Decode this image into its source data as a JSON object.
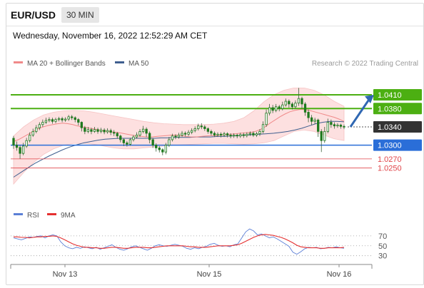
{
  "header": {
    "pair": "EUR/USD",
    "timeframe": "30 MIN",
    "timestamp": "Wednesday, November 16, 2022 12:52:29 AM CET"
  },
  "legend": {
    "ma20_label": "MA 20 + Bollinger Bands",
    "ma50_label": "MA 50",
    "copyright": "Research © 2022 Trading Central"
  },
  "rsi_legend": {
    "rsi_label": "RSI",
    "ma_label": "9MA"
  },
  "colors": {
    "resistance": "#4caf12",
    "support": "#2a6ed8",
    "support_weak": "#e0454a",
    "price_box": "#333333",
    "ma20": "#f08a8a",
    "bollinger_fill": "#fde0e0",
    "ma50": "#3f5f8f",
    "candle": "#1e7a1e",
    "arrow": "#2f67b2",
    "rsi_line": "#5b7fd6",
    "rsi_ma": "#e53030"
  },
  "chart_data": [
    {
      "type": "candlestick",
      "title": "",
      "x_ticks": [
        "Nov 13",
        "Nov 15",
        "Nov 16"
      ],
      "ylim": [
        1.0195,
        1.0435
      ],
      "levels": [
        {
          "value": 1.041,
          "label": "1.0410",
          "kind": "resistance"
        },
        {
          "value": 1.038,
          "label": "1.0380",
          "kind": "resistance"
        },
        {
          "value": 1.034,
          "label": "1.0340",
          "kind": "last_price"
        },
        {
          "value": 1.03,
          "label": "1.0300",
          "kind": "support"
        },
        {
          "value": 1.027,
          "label": "1.0270",
          "kind": "support_minor"
        },
        {
          "value": 1.025,
          "label": "1.0250",
          "kind": "support_minor"
        }
      ],
      "candles": [
        [
          1.0315,
          1.03,
          1.032,
          1.0292
        ],
        [
          1.03,
          1.0295,
          1.0308,
          1.0288
        ],
        [
          1.0295,
          1.0282,
          1.03,
          1.027
        ],
        [
          1.0282,
          1.0298,
          1.0305,
          1.0278
        ],
        [
          1.0298,
          1.031,
          1.0316,
          1.0294
        ],
        [
          1.031,
          1.0322,
          1.0328,
          1.0306
        ],
        [
          1.0322,
          1.033,
          1.0336,
          1.0318
        ],
        [
          1.033,
          1.0338,
          1.0344,
          1.0326
        ],
        [
          1.0338,
          1.0345,
          1.035,
          1.0333
        ],
        [
          1.0345,
          1.035,
          1.0356,
          1.034
        ],
        [
          1.035,
          1.0354,
          1.036,
          1.0346
        ],
        [
          1.0354,
          1.0356,
          1.0361,
          1.035
        ],
        [
          1.0356,
          1.0352,
          1.036,
          1.0347
        ],
        [
          1.0352,
          1.0356,
          1.036,
          1.0348
        ],
        [
          1.0356,
          1.0358,
          1.0362,
          1.0352
        ],
        [
          1.0358,
          1.0355,
          1.0362,
          1.035
        ],
        [
          1.0355,
          1.0357,
          1.0361,
          1.0351
        ],
        [
          1.0357,
          1.0362,
          1.0366,
          1.0353
        ],
        [
          1.0362,
          1.036,
          1.0366,
          1.0355
        ],
        [
          1.036,
          1.0356,
          1.0363,
          1.035
        ],
        [
          1.0356,
          1.035,
          1.0359,
          1.0343
        ],
        [
          1.035,
          1.0338,
          1.0352,
          1.033
        ],
        [
          1.0338,
          1.033,
          1.0342,
          1.0324
        ],
        [
          1.033,
          1.0334,
          1.034,
          1.0326
        ],
        [
          1.0334,
          1.033,
          1.0338,
          1.0324
        ],
        [
          1.033,
          1.0334,
          1.034,
          1.0327
        ],
        [
          1.0334,
          1.033,
          1.0338,
          1.0325
        ],
        [
          1.033,
          1.0333,
          1.0338,
          1.0326
        ],
        [
          1.0333,
          1.0329,
          1.0337,
          1.0324
        ],
        [
          1.0329,
          1.0332,
          1.0337,
          1.0325
        ],
        [
          1.0332,
          1.0328,
          1.0336,
          1.0322
        ],
        [
          1.0328,
          1.0326,
          1.0333,
          1.032
        ],
        [
          1.0326,
          1.032,
          1.0329,
          1.0314
        ],
        [
          1.032,
          1.0312,
          1.0323,
          1.0306
        ],
        [
          1.0312,
          1.0305,
          1.0315,
          1.0298
        ],
        [
          1.0305,
          1.0302,
          1.0309,
          1.0297
        ],
        [
          1.0302,
          1.0312,
          1.0316,
          1.0299
        ],
        [
          1.0312,
          1.0318,
          1.0322,
          1.0308
        ],
        [
          1.0318,
          1.0322,
          1.0328,
          1.0314
        ],
        [
          1.0322,
          1.033,
          1.0335,
          1.0318
        ],
        [
          1.033,
          1.0335,
          1.0342,
          1.0326
        ],
        [
          1.0335,
          1.0326,
          1.0339,
          1.0318
        ],
        [
          1.0326,
          1.0312,
          1.033,
          1.0304
        ],
        [
          1.0312,
          1.03,
          1.0316,
          1.0294
        ],
        [
          1.03,
          1.0294,
          1.0304,
          1.0286
        ],
        [
          1.0294,
          1.029,
          1.0298,
          1.0284
        ],
        [
          1.029,
          1.0285,
          1.0293,
          1.0278
        ],
        [
          1.0285,
          1.03,
          1.0305,
          1.028
        ],
        [
          1.03,
          1.0312,
          1.0318,
          1.0296
        ],
        [
          1.0312,
          1.032,
          1.0325,
          1.0308
        ],
        [
          1.032,
          1.0318,
          1.0324,
          1.0313
        ],
        [
          1.0318,
          1.0322,
          1.0327,
          1.0314
        ],
        [
          1.0322,
          1.0326,
          1.0331,
          1.0318
        ],
        [
          1.0326,
          1.0324,
          1.033,
          1.0319
        ],
        [
          1.0324,
          1.0328,
          1.0333,
          1.032
        ],
        [
          1.0328,
          1.0332,
          1.0337,
          1.0324
        ],
        [
          1.0332,
          1.0336,
          1.0341,
          1.0328
        ],
        [
          1.0336,
          1.0342,
          1.0347,
          1.0332
        ],
        [
          1.0342,
          1.034,
          1.0348,
          1.0335
        ],
        [
          1.034,
          1.0336,
          1.0344,
          1.0331
        ],
        [
          1.0336,
          1.033,
          1.0339,
          1.0325
        ],
        [
          1.033,
          1.0326,
          1.0334,
          1.0321
        ],
        [
          1.0326,
          1.0322,
          1.033,
          1.0318
        ],
        [
          1.0322,
          1.0324,
          1.0328,
          1.0318
        ],
        [
          1.0324,
          1.0322,
          1.0328,
          1.0317
        ],
        [
          1.0322,
          1.0325,
          1.0329,
          1.0318
        ],
        [
          1.0325,
          1.0322,
          1.0328,
          1.0317
        ],
        [
          1.0322,
          1.032,
          1.0326,
          1.0315
        ],
        [
          1.032,
          1.0322,
          1.0326,
          1.0316
        ],
        [
          1.0322,
          1.032,
          1.0325,
          1.0315
        ],
        [
          1.032,
          1.0323,
          1.0327,
          1.0316
        ],
        [
          1.0323,
          1.0321,
          1.0327,
          1.0316
        ],
        [
          1.0321,
          1.0324,
          1.0328,
          1.0317
        ],
        [
          1.0324,
          1.0326,
          1.033,
          1.032
        ],
        [
          1.0326,
          1.0322,
          1.033,
          1.0318
        ],
        [
          1.0322,
          1.0325,
          1.0329,
          1.0318
        ],
        [
          1.0325,
          1.033,
          1.0335,
          1.032
        ],
        [
          1.033,
          1.0345,
          1.0352,
          1.0326
        ],
        [
          1.0345,
          1.037,
          1.0378,
          1.034
        ],
        [
          1.037,
          1.0382,
          1.039,
          1.0365
        ],
        [
          1.0382,
          1.0376,
          1.0388,
          1.037
        ],
        [
          1.0376,
          1.0384,
          1.039,
          1.0372
        ],
        [
          1.0384,
          1.038,
          1.0388,
          1.0374
        ],
        [
          1.038,
          1.0388,
          1.0395,
          1.0376
        ],
        [
          1.0388,
          1.0396,
          1.0402,
          1.0384
        ],
        [
          1.0396,
          1.039,
          1.04,
          1.0382
        ],
        [
          1.039,
          1.0384,
          1.0394,
          1.0378
        ],
        [
          1.0384,
          1.0392,
          1.0398,
          1.038
        ],
        [
          1.0392,
          1.0402,
          1.0425,
          1.0386
        ],
        [
          1.0402,
          1.039,
          1.0406,
          1.038
        ],
        [
          1.039,
          1.0372,
          1.0394,
          1.0364
        ],
        [
          1.0372,
          1.036,
          1.0378,
          1.035
        ],
        [
          1.036,
          1.0352,
          1.0366,
          1.0344
        ],
        [
          1.0352,
          1.0355,
          1.036,
          1.0346
        ],
        [
          1.0355,
          1.033,
          1.0358,
          1.0318
        ],
        [
          1.033,
          1.031,
          1.0335,
          1.0285
        ],
        [
          1.031,
          1.033,
          1.034,
          1.0305
        ],
        [
          1.033,
          1.035,
          1.0358,
          1.0326
        ],
        [
          1.035,
          1.0345,
          1.0356,
          1.0338
        ],
        [
          1.0345,
          1.0342,
          1.035,
          1.0336
        ],
        [
          1.0342,
          1.0344,
          1.0348,
          1.0338
        ],
        [
          1.0344,
          1.0341,
          1.0347,
          1.0336
        ],
        [
          1.0341,
          1.034,
          1.0345,
          1.0335
        ]
      ],
      "ma20": [
        1.0308,
        1.0312,
        1.0318,
        1.0324,
        1.033,
        1.0336,
        1.034,
        1.0343,
        1.0345,
        1.0347,
        1.0348,
        1.0347,
        1.0345,
        1.0342,
        1.034,
        1.0338,
        1.0336,
        1.0334,
        1.0332,
        1.033,
        1.0329,
        1.0328,
        1.0326,
        1.0324,
        1.0322,
        1.032,
        1.0319,
        1.0318,
        1.0318,
        1.0319,
        1.032,
        1.0321,
        1.0322,
        1.0322,
        1.0321,
        1.0319,
        1.0318,
        1.0318,
        1.0319,
        1.032,
        1.0321,
        1.0321,
        1.0322,
        1.0323,
        1.0324,
        1.0325,
        1.0326,
        1.0327,
        1.0328,
        1.033,
        1.0334,
        1.034,
        1.0348,
        1.0355,
        1.0362,
        1.0368,
        1.0373,
        1.0376,
        1.0378,
        1.0378,
        1.0376,
        1.0373,
        1.037,
        1.0367,
        1.0364,
        1.0361,
        1.0357,
        1.0352
      ],
      "ma50": [
        1.023,
        1.024,
        1.025,
        1.026,
        1.0268,
        1.0276,
        1.0283,
        1.029,
        1.0296,
        1.0301,
        1.0305,
        1.0308,
        1.0311,
        1.0313,
        1.0314,
        1.0315,
        1.0315,
        1.0315,
        1.0315,
        1.0315,
        1.0315,
        1.0316,
        1.0316,
        1.0317,
        1.0317,
        1.0317,
        1.0318,
        1.0318,
        1.0318,
        1.0319,
        1.0319,
        1.032,
        1.0321,
        1.0322,
        1.0323,
        1.0324,
        1.0325,
        1.0326,
        1.0328,
        1.033,
        1.0333,
        1.0337,
        1.0342,
        1.0347,
        1.035,
        1.0352,
        1.0352,
        1.0351
      ],
      "bb_upper": [
        1.032,
        1.034,
        1.0355,
        1.0366,
        1.0372,
        1.0375,
        1.0376,
        1.0375,
        1.0372,
        1.0368,
        1.0364,
        1.036,
        1.0356,
        1.0352,
        1.0349,
        1.0347,
        1.0346,
        1.0345,
        1.0345,
        1.0345,
        1.0346,
        1.0348,
        1.0352,
        1.036,
        1.0375,
        1.0395,
        1.041,
        1.042,
        1.0425,
        1.0425,
        1.042,
        1.041,
        1.0396,
        1.0385
      ],
      "bb_lower": [
        1.0215,
        1.024,
        1.0262,
        1.028,
        1.0292,
        1.03,
        1.0304,
        1.0304,
        1.0302,
        1.0298,
        1.0294,
        1.0292,
        1.0292,
        1.0294,
        1.0296,
        1.0298,
        1.03,
        1.0301,
        1.0302,
        1.0303,
        1.0304,
        1.0304,
        1.0303,
        1.0302,
        1.0303,
        1.0305,
        1.031,
        1.032,
        1.033,
        1.0333,
        1.033,
        1.0322,
        1.0314,
        1.031
      ]
    },
    {
      "type": "line",
      "title": "",
      "ylim": [
        18,
        90
      ],
      "y_ticks": [
        70,
        50,
        30
      ],
      "x_ticks": [
        "Nov 13",
        "Nov 15",
        "Nov 16"
      ],
      "series": [
        {
          "name": "RSI",
          "values": [
            66,
            64,
            62,
            65,
            68,
            67,
            69,
            70,
            66,
            70,
            72,
            70,
            58,
            50,
            46,
            44,
            47,
            45,
            48,
            46,
            44,
            47,
            43,
            46,
            49,
            52,
            47,
            43,
            41,
            44,
            48,
            50,
            47,
            44,
            41,
            45,
            50,
            52,
            50,
            49,
            51,
            53,
            51,
            49,
            45,
            43,
            46,
            44,
            47,
            49,
            53,
            55,
            51,
            49,
            50,
            48,
            52,
            54,
            66,
            78,
            84,
            80,
            72,
            74,
            70,
            66,
            68,
            64,
            59,
            54,
            49,
            37,
            33,
            38,
            44,
            47,
            46,
            47,
            44,
            45,
            47,
            46,
            48,
            46,
            45
          ]
        },
        {
          "name": "9MA",
          "values": [
            68,
            68,
            67,
            67,
            66,
            67,
            68,
            68,
            69,
            69,
            70,
            69,
            66,
            62,
            58,
            54,
            51,
            49,
            47,
            47,
            46,
            46,
            45,
            45,
            46,
            47,
            47,
            46,
            45,
            45,
            46,
            47,
            47,
            47,
            46,
            46,
            47,
            48,
            49,
            50,
            50,
            50,
            50,
            50,
            49,
            48,
            48,
            47,
            47,
            47,
            48,
            49,
            50,
            50,
            50,
            50,
            51,
            52,
            55,
            59,
            63,
            67,
            70,
            72,
            73,
            72,
            71,
            69,
            67,
            64,
            60,
            56,
            51,
            48,
            47,
            46,
            46,
            46,
            45,
            45,
            46,
            46,
            46,
            46,
            47
          ]
        }
      ]
    }
  ]
}
